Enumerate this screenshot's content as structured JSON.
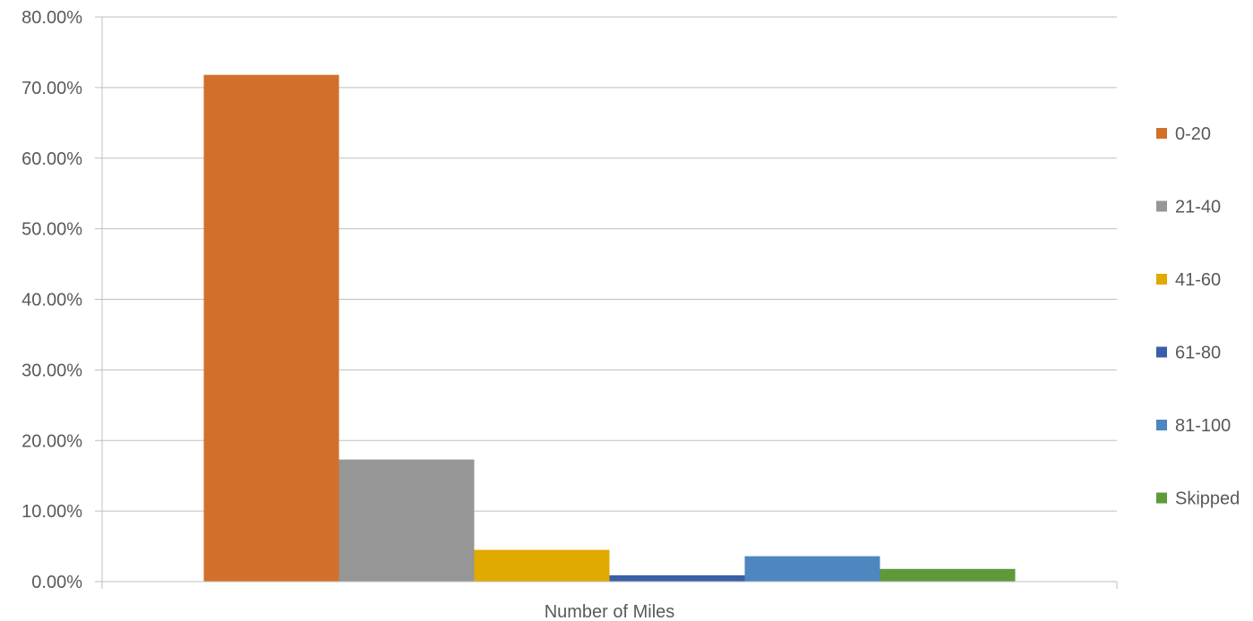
{
  "chart_data": {
    "type": "bar",
    "categories": [
      "Number of Miles"
    ],
    "series": [
      {
        "name": "0-20",
        "values": [
          71.8
        ],
        "color": "#D2702B"
      },
      {
        "name": "21-40",
        "values": [
          17.3
        ],
        "color": "#969696"
      },
      {
        "name": "41-60",
        "values": [
          4.5
        ],
        "color": "#E0AA00"
      },
      {
        "name": "61-80",
        "values": [
          0.9
        ],
        "color": "#3A5FA8"
      },
      {
        "name": "81-100",
        "values": [
          3.6
        ],
        "color": "#4E86C0"
      },
      {
        "name": "Skipped",
        "values": [
          1.8
        ],
        "color": "#5E9A3A"
      }
    ],
    "ylim": [
      0,
      80
    ],
    "yticks": [
      "0.00%",
      "10.00%",
      "20.00%",
      "30.00%",
      "40.00%",
      "50.00%",
      "60.00%",
      "70.00%",
      "80.00%"
    ],
    "ytick_values": [
      0,
      10,
      20,
      30,
      40,
      50,
      60,
      70,
      80
    ],
    "grid": true,
    "legend_position": "right",
    "axis_color": "#BFBFBF",
    "gridline_color": "#BFBFBF"
  }
}
